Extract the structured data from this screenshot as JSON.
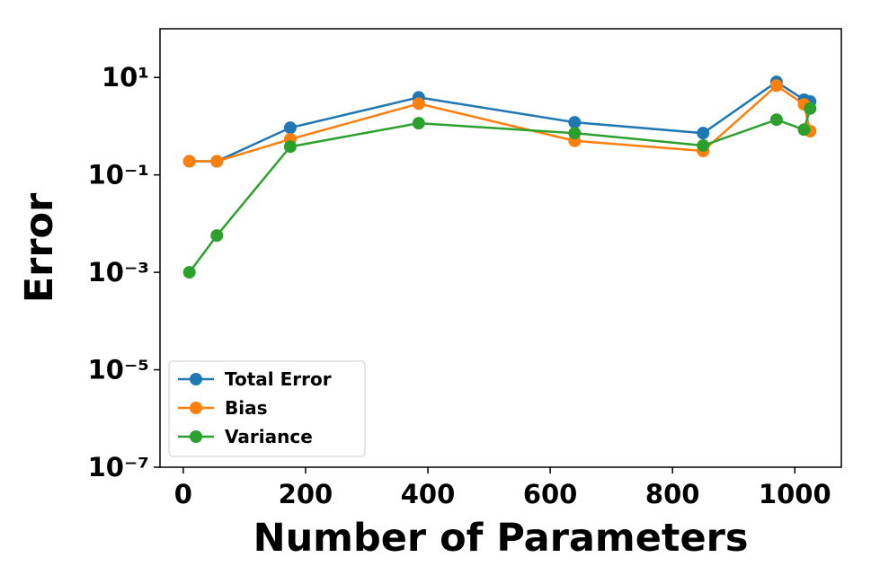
{
  "chart_data": {
    "type": "line",
    "x_label": "Number of Parameters",
    "y_label": "Error",
    "x": [
      10,
      55,
      175,
      385,
      640,
      850,
      970,
      1015,
      1025
    ],
    "series": [
      {
        "name": "Total Error",
        "color": "#1f77b4",
        "values": [
          0.19,
          0.19,
          0.93,
          3.9,
          1.2,
          0.72,
          8.1,
          3.5,
          3.2
        ]
      },
      {
        "name": "Bias",
        "color": "#ff7f0e",
        "values": [
          0.19,
          0.19,
          0.54,
          2.9,
          0.5,
          0.31,
          6.8,
          2.8,
          0.79
        ]
      },
      {
        "name": "Variance",
        "color": "#2ca02c",
        "values": [
          0.001,
          0.0057,
          0.38,
          1.15,
          0.72,
          0.4,
          1.36,
          0.85,
          2.3
        ]
      }
    ],
    "xlim": [
      -38,
      1076
    ],
    "xticks": [
      0,
      200,
      400,
      600,
      800,
      1000
    ],
    "ylim": [
      1e-07,
      100
    ],
    "log_y": true,
    "yticks": [
      {
        "value": 1e-07,
        "label": "10⁻⁷"
      },
      {
        "value": 1e-05,
        "label": "10⁻⁵"
      },
      {
        "value": 0.001,
        "label": "10⁻³"
      },
      {
        "value": 0.1,
        "label": "10⁻¹"
      },
      {
        "value": 10,
        "label": "10¹"
      }
    ],
    "legend": "lower left"
  }
}
